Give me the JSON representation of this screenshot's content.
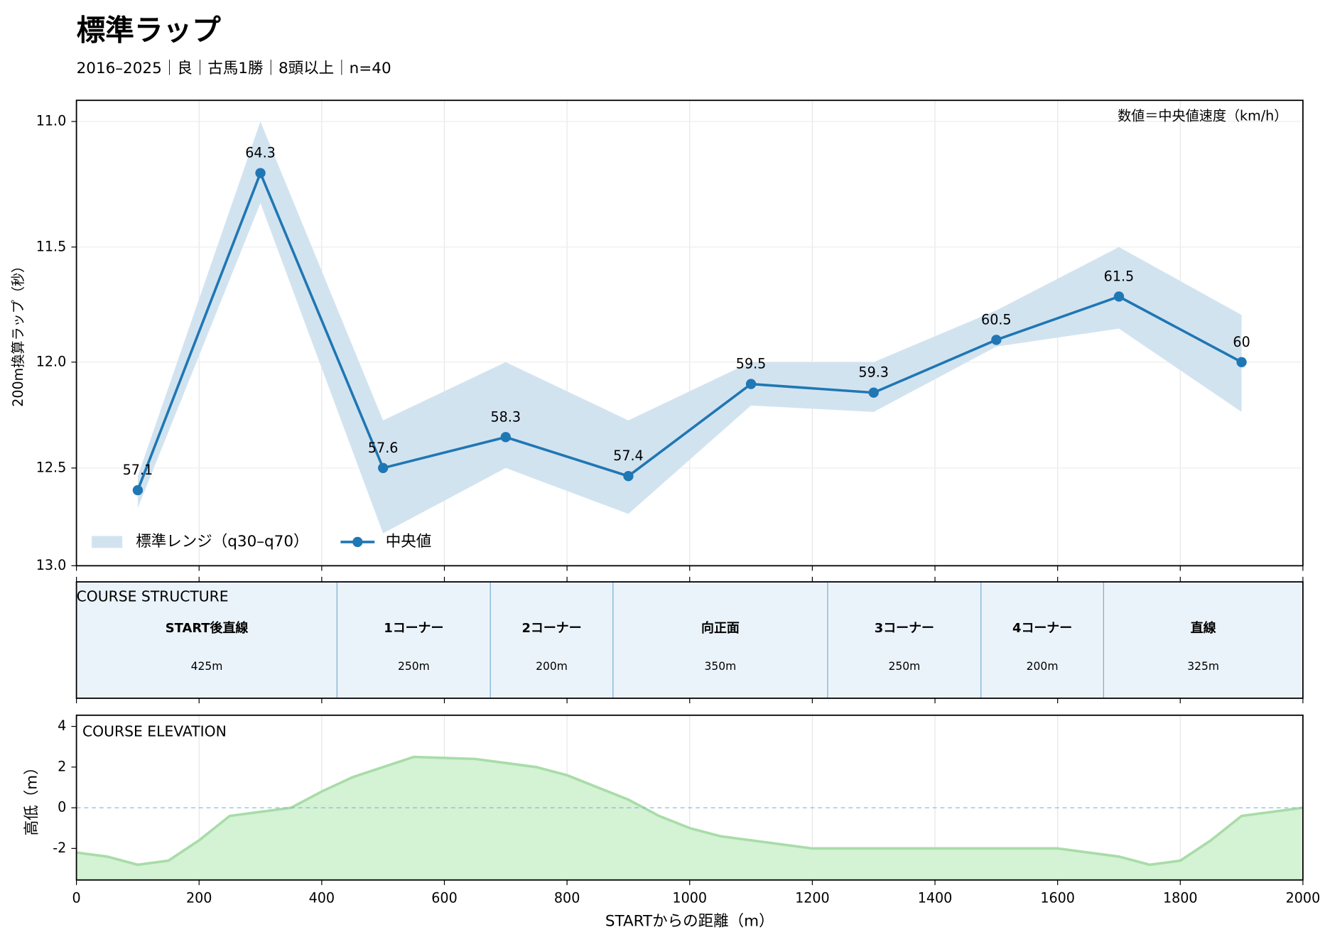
{
  "chart_data": [
    {
      "type": "line",
      "title": "標準ラップ",
      "subtitle": "2016–2025｜良｜古馬1勝｜8頭以上｜n=40",
      "ylabel": "200m換算ラップ（秒）",
      "annotation": "数値＝中央値速度（km/h）",
      "x": [
        100,
        300,
        500,
        700,
        900,
        1100,
        1300,
        1500,
        1700,
        1900
      ],
      "series": [
        {
          "name": "中央値",
          "color": "#1f77b4",
          "values": [
            12.61,
            11.2,
            12.5,
            12.35,
            12.54,
            12.1,
            12.14,
            11.9,
            11.71,
            12.0
          ],
          "speeds": [
            57.1,
            64.3,
            57.6,
            58.3,
            57.4,
            59.5,
            59.3,
            60.5,
            61.5,
            60.0
          ]
        }
      ],
      "band": {
        "name": "標準レンジ（q30–q70）",
        "color": "#d2e3f0",
        "low": [
          12.54,
          11.0,
          12.27,
          12.0,
          12.27,
          12.0,
          12.0,
          11.77,
          11.5,
          11.79
        ],
        "high": [
          12.7,
          11.32,
          12.83,
          12.5,
          12.73,
          12.2,
          12.23,
          11.93,
          11.85,
          12.23
        ]
      },
      "yscale": "reciprocal",
      "ylim": [
        10.92,
        13.0
      ],
      "yticks": [
        {
          "value": 11.0,
          "label": "11.0"
        },
        {
          "value": 11.5,
          "label": "11.5"
        },
        {
          "value": 12.0,
          "label": "12.0"
        },
        {
          "value": 12.5,
          "label": "12.5"
        },
        {
          "value": 13.0,
          "label": "13.0"
        }
      ],
      "xlim": [
        0,
        2000
      ],
      "xticks": [
        0,
        200,
        400,
        600,
        800,
        1000,
        1200,
        1400,
        1600,
        1800,
        2000
      ],
      "grid": true,
      "legend": "lower left"
    },
    {
      "type": "segments",
      "title": "COURSE STRUCTURE",
      "color": "#ebf3fa",
      "edge": "#7fb3d5",
      "categories": [
        "START後直線",
        "1コーナー",
        "2コーナー",
        "向正面",
        "3コーナー",
        "4コーナー",
        "直線"
      ],
      "values": [
        425,
        250,
        200,
        350,
        250,
        200,
        325
      ],
      "value_labels": [
        "425m",
        "250m",
        "200m",
        "350m",
        "250m",
        "200m",
        "325m"
      ]
    },
    {
      "type": "area",
      "title": "COURSE ELEVATION",
      "ylabel": "高低（m）",
      "xlabel": "STARTからの距離（m）",
      "color": "#d4f2d4",
      "line_color": "#a8dca8",
      "zero_line": true,
      "x": [
        0,
        50,
        100,
        150,
        200,
        250,
        300,
        350,
        400,
        450,
        500,
        550,
        600,
        650,
        700,
        750,
        800,
        850,
        900,
        950,
        1000,
        1050,
        1100,
        1150,
        1200,
        1250,
        1300,
        1350,
        1400,
        1450,
        1500,
        1550,
        1600,
        1650,
        1700,
        1750,
        1800,
        1850,
        1900,
        1950,
        2000
      ],
      "values": [
        -2.2,
        -2.4,
        -2.8,
        -2.6,
        -1.6,
        -0.4,
        -0.2,
        0,
        0.8,
        1.5,
        2.0,
        2.5,
        2.45,
        2.4,
        2.2,
        2.0,
        1.6,
        1.0,
        0.4,
        -0.4,
        -1.0,
        -1.4,
        -1.6,
        -1.8,
        -2.0,
        -2.0,
        -2.0,
        -2.0,
        -2.0,
        -2.0,
        -2.0,
        -2.0,
        -2.0,
        -2.2,
        -2.4,
        -2.8,
        -2.6,
        -1.6,
        -0.4,
        -0.2,
        0
      ],
      "ylim": [
        -3.55,
        4.55
      ],
      "yticks": [
        -2,
        0,
        2,
        4
      ],
      "xlim": [
        0,
        2000
      ],
      "xticks": [
        0,
        200,
        400,
        600,
        800,
        1000,
        1200,
        1400,
        1600,
        1800,
        2000
      ]
    }
  ]
}
